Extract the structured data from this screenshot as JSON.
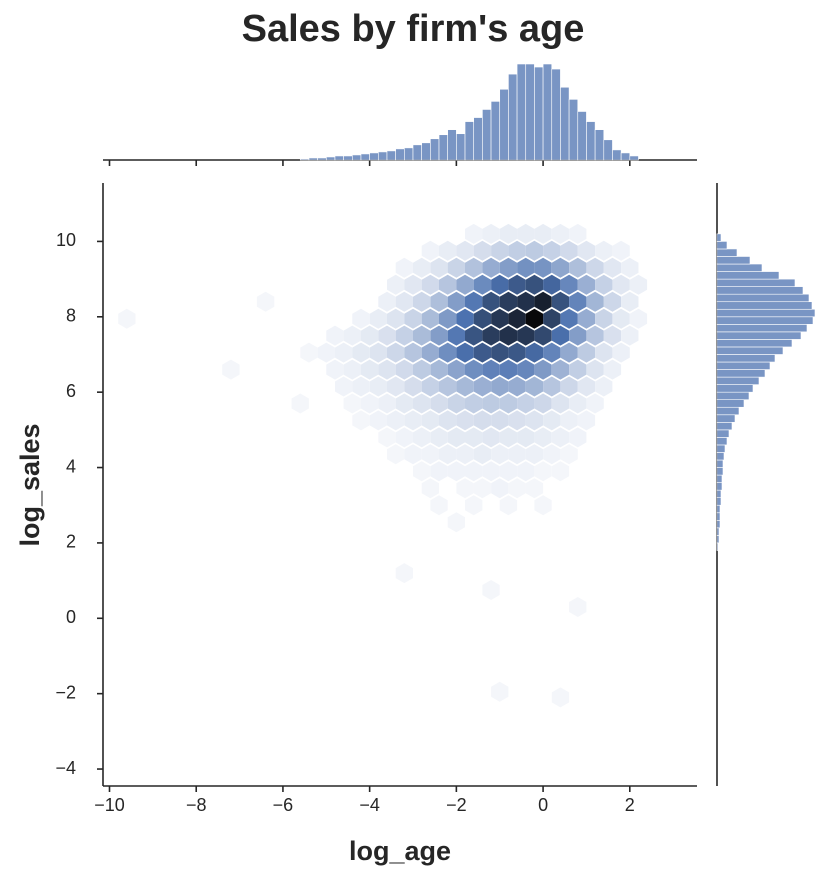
{
  "chart_data": {
    "type": "hexbin",
    "title": "Sales by firm's age",
    "x_label": "log_age",
    "y_label": "log_sales",
    "color": "#4c72b0",
    "xlim": [
      -10.15,
      3.55
    ],
    "ylim": [
      -4.45,
      11.55
    ],
    "xticks": [
      {
        "value": -10,
        "label": "−10"
      },
      {
        "value": -8,
        "label": "−8"
      },
      {
        "value": -6,
        "label": "−6"
      },
      {
        "value": -4,
        "label": "−4"
      },
      {
        "value": -2,
        "label": "−2"
      },
      0,
      2
    ],
    "yticks": [
      {
        "value": -4,
        "label": "−4"
      },
      {
        "value": -2,
        "label": "−2"
      },
      0,
      2,
      4,
      6,
      8,
      10
    ],
    "hexbin": {
      "rows": [
        {
          "y": 10.2,
          "x": [
            -1.6,
            -1.2,
            -0.8,
            -0.4,
            0,
            0.4,
            0.8
          ],
          "counts": [
            2,
            3,
            4,
            4,
            4,
            3,
            2
          ]
        },
        {
          "y": 9.75,
          "x": [
            -2.6,
            -2.2,
            -1.8,
            -1.4,
            -1.0,
            -0.6,
            -0.2,
            0.2,
            0.6,
            1.0,
            1.4,
            1.8
          ],
          "counts": [
            2,
            4,
            6,
            9,
            12,
            14,
            15,
            13,
            10,
            6,
            3,
            2
          ]
        },
        {
          "y": 9.3,
          "x": [
            -3.2,
            -2.8,
            -2.4,
            -2.0,
            -1.6,
            -1.2,
            -0.8,
            -0.4,
            0,
            0.4,
            0.8,
            1.2,
            1.6,
            2.0
          ],
          "counts": [
            2,
            4,
            7,
            12,
            18,
            25,
            30,
            34,
            33,
            27,
            19,
            11,
            6,
            3
          ]
        },
        {
          "y": 8.85,
          "x": [
            -3.4,
            -3.0,
            -2.6,
            -2.2,
            -1.8,
            -1.4,
            -1.0,
            -0.6,
            -0.2,
            0.2,
            0.6,
            1.0,
            1.4,
            1.8,
            2.2
          ],
          "counts": [
            3,
            6,
            10,
            17,
            26,
            36,
            46,
            52,
            55,
            48,
            37,
            24,
            13,
            6,
            3
          ]
        },
        {
          "y": 8.4,
          "x": [
            -3.6,
            -3.2,
            -2.8,
            -2.4,
            -2.0,
            -1.6,
            -1.2,
            -0.8,
            -0.4,
            0,
            0.4,
            0.8,
            1.2,
            1.6,
            2.0
          ],
          "counts": [
            3,
            6,
            11,
            19,
            30,
            42,
            55,
            62,
            66,
            72,
            55,
            38,
            22,
            11,
            4
          ]
        },
        {
          "y": 7.95,
          "x": [
            -4.2,
            -3.8,
            -3.4,
            -3.0,
            -2.6,
            -2.2,
            -1.8,
            -1.4,
            -1.0,
            -0.6,
            -0.2,
            0.2,
            0.6,
            1.0,
            1.4,
            1.8,
            2.2
          ],
          "counts": [
            2,
            4,
            7,
            12,
            20,
            31,
            44,
            56,
            64,
            70,
            80,
            60,
            42,
            25,
            12,
            5,
            2
          ]
        },
        {
          "y": 7.5,
          "x": [
            -4.8,
            -4.4,
            -4.0,
            -3.6,
            -3.2,
            -2.8,
            -2.4,
            -2.0,
            -1.6,
            -1.2,
            -0.8,
            -0.4,
            0,
            0.4,
            0.8,
            1.2,
            1.6,
            2.0
          ],
          "counts": [
            2,
            3,
            5,
            8,
            13,
            20,
            30,
            42,
            54,
            62,
            66,
            64,
            58,
            45,
            30,
            17,
            8,
            3
          ]
        },
        {
          "y": 7.05,
          "x": [
            -5.4,
            -5.0,
            -4.6,
            -4.2,
            -3.8,
            -3.4,
            -3.0,
            -2.6,
            -2.2,
            -1.8,
            -1.4,
            -1.0,
            -0.6,
            -0.2,
            0.2,
            0.6,
            1.0,
            1.4,
            1.8
          ],
          "counts": [
            1,
            2,
            3,
            5,
            7,
            11,
            17,
            25,
            35,
            45,
            52,
            55,
            53,
            47,
            38,
            26,
            15,
            7,
            3
          ]
        },
        {
          "y": 6.6,
          "x": [
            -4.8,
            -4.4,
            -4.0,
            -3.6,
            -3.2,
            -2.8,
            -2.4,
            -2.0,
            -1.6,
            -1.2,
            -0.8,
            -0.4,
            0,
            0.4,
            0.8,
            1.2,
            1.6
          ],
          "counts": [
            2,
            3,
            5,
            7,
            10,
            15,
            21,
            28,
            35,
            39,
            40,
            37,
            31,
            23,
            14,
            7,
            3
          ]
        },
        {
          "y": 6.15,
          "x": [
            -4.6,
            -4.2,
            -3.8,
            -3.4,
            -3.0,
            -2.6,
            -2.2,
            -1.8,
            -1.4,
            -1.0,
            -0.6,
            -0.2,
            0.2,
            0.6,
            1.0,
            1.4
          ],
          "counts": [
            2,
            3,
            4,
            6,
            9,
            13,
            17,
            21,
            24,
            26,
            25,
            22,
            17,
            11,
            6,
            3
          ]
        },
        {
          "y": 5.7,
          "x": [
            -4.4,
            -4.0,
            -3.6,
            -3.2,
            -2.8,
            -2.4,
            -2.0,
            -1.6,
            -1.2,
            -0.8,
            -0.4,
            0,
            0.4,
            0.8,
            1.2
          ],
          "counts": [
            1,
            2,
            3,
            5,
            7,
            9,
            12,
            14,
            15,
            15,
            13,
            11,
            7,
            4,
            2
          ]
        },
        {
          "y": 5.25,
          "x": [
            -4.2,
            -3.8,
            -3.4,
            -3.0,
            -2.6,
            -2.2,
            -1.8,
            -1.4,
            -1.0,
            -0.6,
            -0.2,
            0.2,
            0.6,
            1.0
          ],
          "counts": [
            1,
            2,
            3,
            4,
            5,
            7,
            8,
            9,
            9,
            8,
            7,
            5,
            3,
            2
          ]
        },
        {
          "y": 4.8,
          "x": [
            -3.6,
            -3.2,
            -2.8,
            -2.4,
            -2.0,
            -1.6,
            -1.2,
            -0.8,
            -0.4,
            0,
            0.4,
            0.8
          ],
          "counts": [
            1,
            2,
            3,
            4,
            5,
            5,
            6,
            5,
            5,
            4,
            3,
            2
          ]
        },
        {
          "y": 4.35,
          "x": [
            -3.4,
            -3.0,
            -2.6,
            -2.2,
            -1.8,
            -1.4,
            -1.0,
            -0.6,
            -0.2,
            0.2,
            0.6
          ],
          "counts": [
            1,
            2,
            2,
            3,
            3,
            4,
            3,
            3,
            3,
            2,
            1
          ]
        },
        {
          "y": 3.9,
          "x": [
            -2.8,
            -2.4,
            -2.0,
            -1.6,
            -1.2,
            -0.8,
            -0.4,
            0,
            0.4
          ],
          "counts": [
            1,
            2,
            2,
            2,
            2,
            2,
            2,
            1,
            1
          ]
        },
        {
          "y": 3.45,
          "x": [
            -2.6,
            -1.8,
            -1.4,
            -1.0,
            -0.6,
            -0.2
          ],
          "counts": [
            1,
            1,
            1,
            2,
            1,
            1
          ]
        },
        {
          "y": 3.0,
          "x": [
            -2.4,
            -1.6,
            -0.8,
            0
          ],
          "counts": [
            1,
            1,
            1,
            1
          ]
        },
        {
          "y": 8.4,
          "x": [
            -6.4
          ],
          "counts": [
            1
          ]
        },
        {
          "y": 7.95,
          "x": [
            -9.6
          ],
          "counts": [
            1
          ]
        },
        {
          "y": 6.6,
          "x": [
            -7.2
          ],
          "counts": [
            1
          ]
        },
        {
          "y": 5.7,
          "x": [
            -5.6
          ],
          "counts": [
            1
          ]
        },
        {
          "y": 2.55,
          "x": [
            -2.0
          ],
          "counts": [
            1
          ]
        },
        {
          "y": 1.2,
          "x": [
            -3.2
          ],
          "counts": [
            1
          ]
        },
        {
          "y": 0.75,
          "x": [
            -1.2
          ],
          "counts": [
            1
          ]
        },
        {
          "y": 0.3,
          "x": [
            0.8
          ],
          "counts": [
            1
          ]
        },
        {
          "y": -1.95,
          "x": [
            -1.0
          ],
          "counts": [
            1
          ]
        },
        {
          "y": -2.1,
          "x": [
            0.4
          ],
          "counts": [
            1
          ]
        }
      ]
    },
    "x_hist": {
      "bins": [
        -5.6,
        -5.4,
        -5.2,
        -5.0,
        -4.8,
        -4.6,
        -4.4,
        -4.2,
        -4.0,
        -3.8,
        -3.6,
        -3.4,
        -3.2,
        -3.0,
        -2.8,
        -2.6,
        -2.4,
        -2.2,
        -2.0,
        -1.8,
        -1.6,
        -1.4,
        -1.2,
        -1.0,
        -0.8,
        -0.6,
        -0.4,
        -0.2,
        0.0,
        0.2,
        0.4,
        0.6,
        0.8,
        1.0,
        1.2,
        1.4,
        1.6,
        1.8,
        2.0,
        2.2
      ],
      "counts": [
        1,
        2,
        2,
        3,
        4,
        4,
        5,
        6,
        7,
        8,
        9,
        11,
        12,
        15,
        17,
        21,
        25,
        30,
        26,
        38,
        42,
        50,
        58,
        70,
        85,
        95,
        95,
        92,
        95,
        90,
        72,
        60,
        48,
        38,
        30,
        20,
        10,
        7,
        4
      ]
    },
    "y_hist": {
      "bins": [
        1.8,
        2.0,
        2.2,
        2.4,
        2.6,
        2.8,
        3.0,
        3.2,
        3.4,
        3.6,
        3.8,
        4.0,
        4.2,
        4.4,
        4.6,
        4.8,
        5.0,
        5.2,
        5.4,
        5.6,
        5.8,
        6.0,
        6.2,
        6.4,
        6.6,
        6.8,
        7.0,
        7.2,
        7.4,
        7.6,
        7.8,
        8.0,
        8.2,
        8.4,
        8.6,
        8.8,
        9.0,
        9.2,
        9.4,
        9.6,
        9.8,
        10.0,
        10.2
      ],
      "counts": [
        1,
        2,
        2,
        3,
        3,
        3,
        4,
        4,
        5,
        5,
        6,
        6,
        7,
        8,
        10,
        12,
        15,
        18,
        22,
        27,
        32,
        36,
        42,
        48,
        53,
        58,
        66,
        75,
        84,
        90,
        96,
        98,
        95,
        92,
        86,
        78,
        62,
        45,
        33,
        20,
        10,
        4
      ]
    }
  }
}
